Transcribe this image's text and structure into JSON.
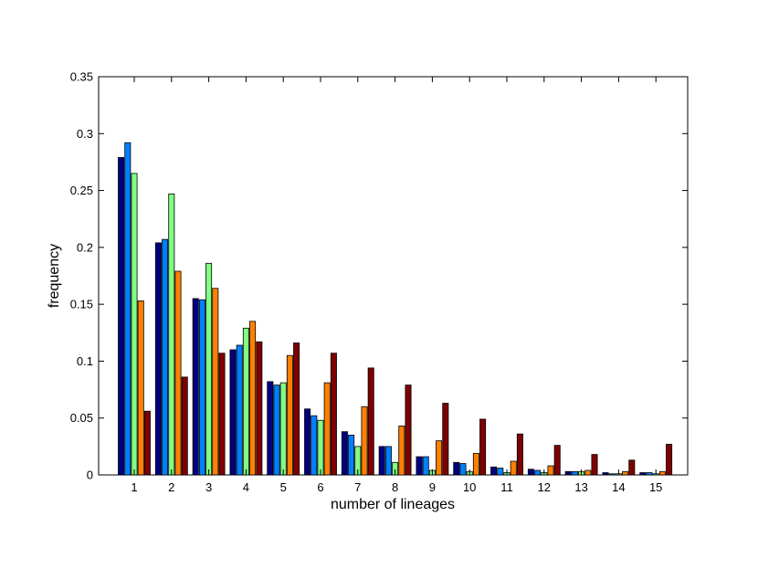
{
  "chart_data": {
    "type": "bar",
    "title": "",
    "xlabel": "number of lineages",
    "ylabel": "frequency",
    "categories": [
      "1",
      "2",
      "3",
      "4",
      "5",
      "6",
      "7",
      "8",
      "9",
      "10",
      "11",
      "12",
      "13",
      "14",
      "15"
    ],
    "ylim": [
      0,
      0.35
    ],
    "yticks": [
      0,
      0.05,
      0.1,
      0.15,
      0.2,
      0.25,
      0.3,
      0.35
    ],
    "ytick_labels": [
      "0",
      "0.05",
      "0.1",
      "0.15",
      "0.2",
      "0.25",
      "0.3",
      "0.35"
    ],
    "grid": false,
    "legend": "none",
    "series": [
      {
        "color": "#00007f",
        "values": [
          0.279,
          0.204,
          0.155,
          0.11,
          0.082,
          0.058,
          0.038,
          0.025,
          0.016,
          0.011,
          0.007,
          0.005,
          0.003,
          0.002,
          0.002
        ]
      },
      {
        "color": "#0080ff",
        "values": [
          0.292,
          0.207,
          0.154,
          0.114,
          0.079,
          0.052,
          0.035,
          0.025,
          0.016,
          0.01,
          0.006,
          0.004,
          0.003,
          0.001,
          0.002
        ]
      },
      {
        "color": "#80ff80",
        "values": [
          0.265,
          0.247,
          0.186,
          0.129,
          0.081,
          0.048,
          0.025,
          0.011,
          0.004,
          0.003,
          0.002,
          0.002,
          0.003,
          0.001,
          0.001
        ]
      },
      {
        "color": "#ff8000",
        "values": [
          0.153,
          0.179,
          0.164,
          0.135,
          0.105,
          0.081,
          0.06,
          0.043,
          0.03,
          0.019,
          0.012,
          0.008,
          0.004,
          0.003,
          0.003
        ]
      },
      {
        "color": "#7f0000",
        "values": [
          0.056,
          0.086,
          0.107,
          0.117,
          0.116,
          0.107,
          0.094,
          0.079,
          0.063,
          0.049,
          0.036,
          0.026,
          0.018,
          0.013,
          0.027
        ]
      }
    ]
  }
}
